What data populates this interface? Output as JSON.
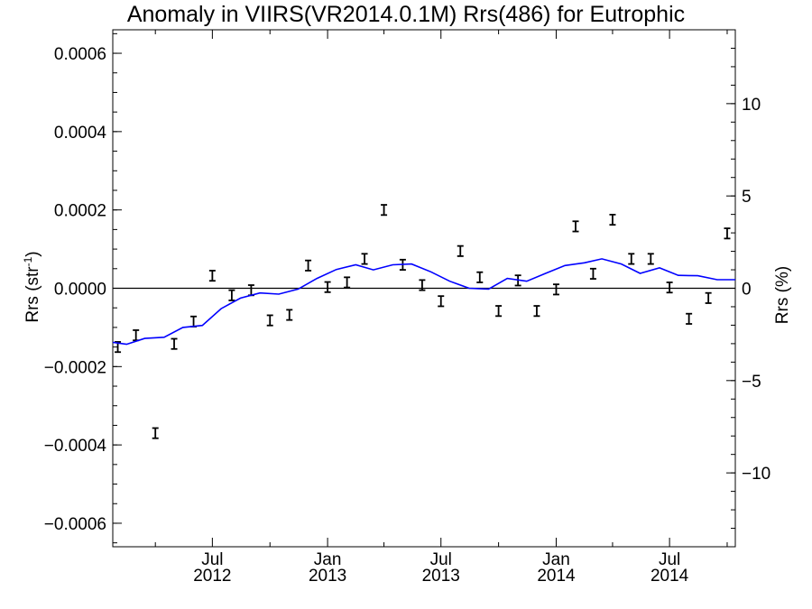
{
  "chart_data": {
    "type": "scatter",
    "title": "Anomaly in VIIRS(VR2014.0.1M) Rrs(486) for Eutrophic",
    "ylabel": "Rrs (str",
    "ylabel_sup": "-1",
    "ylabel_tail": ")",
    "y2label": "Rrs (%)",
    "x_range": [
      "2012-01-24",
      "2014-10-14"
    ],
    "ylim": [
      -0.00066,
      0.00066
    ],
    "y2lim": [
      -14,
      14
    ],
    "y_ticks": [
      {
        "v": -0.0006,
        "label": "−0.0006"
      },
      {
        "v": -0.0004,
        "label": "−0.0004"
      },
      {
        "v": -0.0002,
        "label": "−0.0002"
      },
      {
        "v": 0.0,
        "label": "0.0000"
      },
      {
        "v": 0.0002,
        "label": "0.0002"
      },
      {
        "v": 0.0004,
        "label": "0.0004"
      },
      {
        "v": 0.0006,
        "label": "0.0006"
      }
    ],
    "y2_ticks": [
      {
        "v": -10,
        "label": "−10"
      },
      {
        "v": -5,
        "label": "−5"
      },
      {
        "v": 0,
        "label": "0"
      },
      {
        "v": 5,
        "label": "5"
      },
      {
        "v": 10,
        "label": "10"
      }
    ],
    "x_ticks": [
      {
        "date": "2012-07-01",
        "month": "Jul",
        "year": "2012"
      },
      {
        "date": "2013-01-01",
        "month": "Jan",
        "year": "2013"
      },
      {
        "date": "2013-07-01",
        "month": "Jul",
        "year": "2013"
      },
      {
        "date": "2014-01-01",
        "month": "Jan",
        "year": "2014"
      },
      {
        "date": "2014-07-01",
        "month": "Jul",
        "year": "2014"
      }
    ],
    "zero_line": 0,
    "grid": false,
    "series": [
      {
        "kind": "errorbar",
        "color": "#000000",
        "error": 1.3e-05,
        "points": [
          {
            "x": "2012-02-01",
            "y": -0.00015
          },
          {
            "x": "2012-03-01",
            "y": -0.00012
          },
          {
            "x": "2012-04-01",
            "y": -0.00037
          },
          {
            "x": "2012-05-01",
            "y": -0.000142
          },
          {
            "x": "2012-06-01",
            "y": -8.5e-05
          },
          {
            "x": "2012-07-01",
            "y": 3.2e-05
          },
          {
            "x": "2012-08-01",
            "y": -1.8e-05
          },
          {
            "x": "2012-09-01",
            "y": -5e-06
          },
          {
            "x": "2012-10-01",
            "y": -8.2e-05
          },
          {
            "x": "2012-11-01",
            "y": -6.8e-05
          },
          {
            "x": "2012-12-01",
            "y": 5.8e-05
          },
          {
            "x": "2013-01-01",
            "y": 3e-06
          },
          {
            "x": "2013-02-01",
            "y": 1.5e-05
          },
          {
            "x": "2013-03-01",
            "y": 7.5e-05
          },
          {
            "x": "2013-04-01",
            "y": 0.0002
          },
          {
            "x": "2013-05-01",
            "y": 6e-05
          },
          {
            "x": "2013-06-01",
            "y": 8e-06
          },
          {
            "x": "2013-07-01",
            "y": -3.3e-05
          },
          {
            "x": "2013-08-01",
            "y": 9.5e-05
          },
          {
            "x": "2013-09-01",
            "y": 2.8e-05
          },
          {
            "x": "2013-10-01",
            "y": -5.8e-05
          },
          {
            "x": "2013-11-01",
            "y": 2e-05
          },
          {
            "x": "2013-12-01",
            "y": -5.8e-05
          },
          {
            "x": "2014-01-01",
            "y": -3e-06
          },
          {
            "x": "2014-02-01",
            "y": 0.000158
          },
          {
            "x": "2014-03-01",
            "y": 3.7e-05
          },
          {
            "x": "2014-04-01",
            "y": 0.000175
          },
          {
            "x": "2014-05-01",
            "y": 7.5e-05
          },
          {
            "x": "2014-06-01",
            "y": 7.5e-05
          },
          {
            "x": "2014-07-01",
            "y": 2e-06
          },
          {
            "x": "2014-08-01",
            "y": -7.8e-05
          },
          {
            "x": "2014-09-01",
            "y": -2.5e-05
          },
          {
            "x": "2014-10-01",
            "y": 0.00014
          }
        ]
      },
      {
        "kind": "line",
        "color": "#0000ff",
        "points": [
          {
            "x": "2012-01-24",
            "y": -0.000138
          },
          {
            "x": "2012-02-15",
            "y": -0.000143
          },
          {
            "x": "2012-03-15",
            "y": -0.000128
          },
          {
            "x": "2012-04-15",
            "y": -0.000125
          },
          {
            "x": "2012-05-15",
            "y": -0.0001
          },
          {
            "x": "2012-06-15",
            "y": -9.5e-05
          },
          {
            "x": "2012-07-15",
            "y": -5.2e-05
          },
          {
            "x": "2012-08-15",
            "y": -2.5e-05
          },
          {
            "x": "2012-09-15",
            "y": -1.2e-05
          },
          {
            "x": "2012-10-15",
            "y": -1.5e-05
          },
          {
            "x": "2012-11-15",
            "y": -2e-06
          },
          {
            "x": "2012-12-15",
            "y": 2.5e-05
          },
          {
            "x": "2013-01-15",
            "y": 4.8e-05
          },
          {
            "x": "2013-02-15",
            "y": 6e-05
          },
          {
            "x": "2013-03-15",
            "y": 4.7e-05
          },
          {
            "x": "2013-04-15",
            "y": 6e-05
          },
          {
            "x": "2013-05-15",
            "y": 6.2e-05
          },
          {
            "x": "2013-06-15",
            "y": 4.2e-05
          },
          {
            "x": "2013-07-15",
            "y": 1.8e-05
          },
          {
            "x": "2013-08-15",
            "y": 0.0
          },
          {
            "x": "2013-09-15",
            "y": -2e-06
          },
          {
            "x": "2013-10-15",
            "y": 2.5e-05
          },
          {
            "x": "2013-11-15",
            "y": 1.8e-05
          },
          {
            "x": "2013-12-15",
            "y": 3.8e-05
          },
          {
            "x": "2014-01-15",
            "y": 5.8e-05
          },
          {
            "x": "2014-02-15",
            "y": 6.5e-05
          },
          {
            "x": "2014-03-15",
            "y": 7.5e-05
          },
          {
            "x": "2014-04-15",
            "y": 6.2e-05
          },
          {
            "x": "2014-05-15",
            "y": 3.8e-05
          },
          {
            "x": "2014-06-15",
            "y": 5.2e-05
          },
          {
            "x": "2014-07-15",
            "y": 3.3e-05
          },
          {
            "x": "2014-08-15",
            "y": 3.2e-05
          },
          {
            "x": "2014-09-15",
            "y": 2.2e-05
          },
          {
            "x": "2014-10-14",
            "y": 2.2e-05
          }
        ]
      }
    ]
  }
}
